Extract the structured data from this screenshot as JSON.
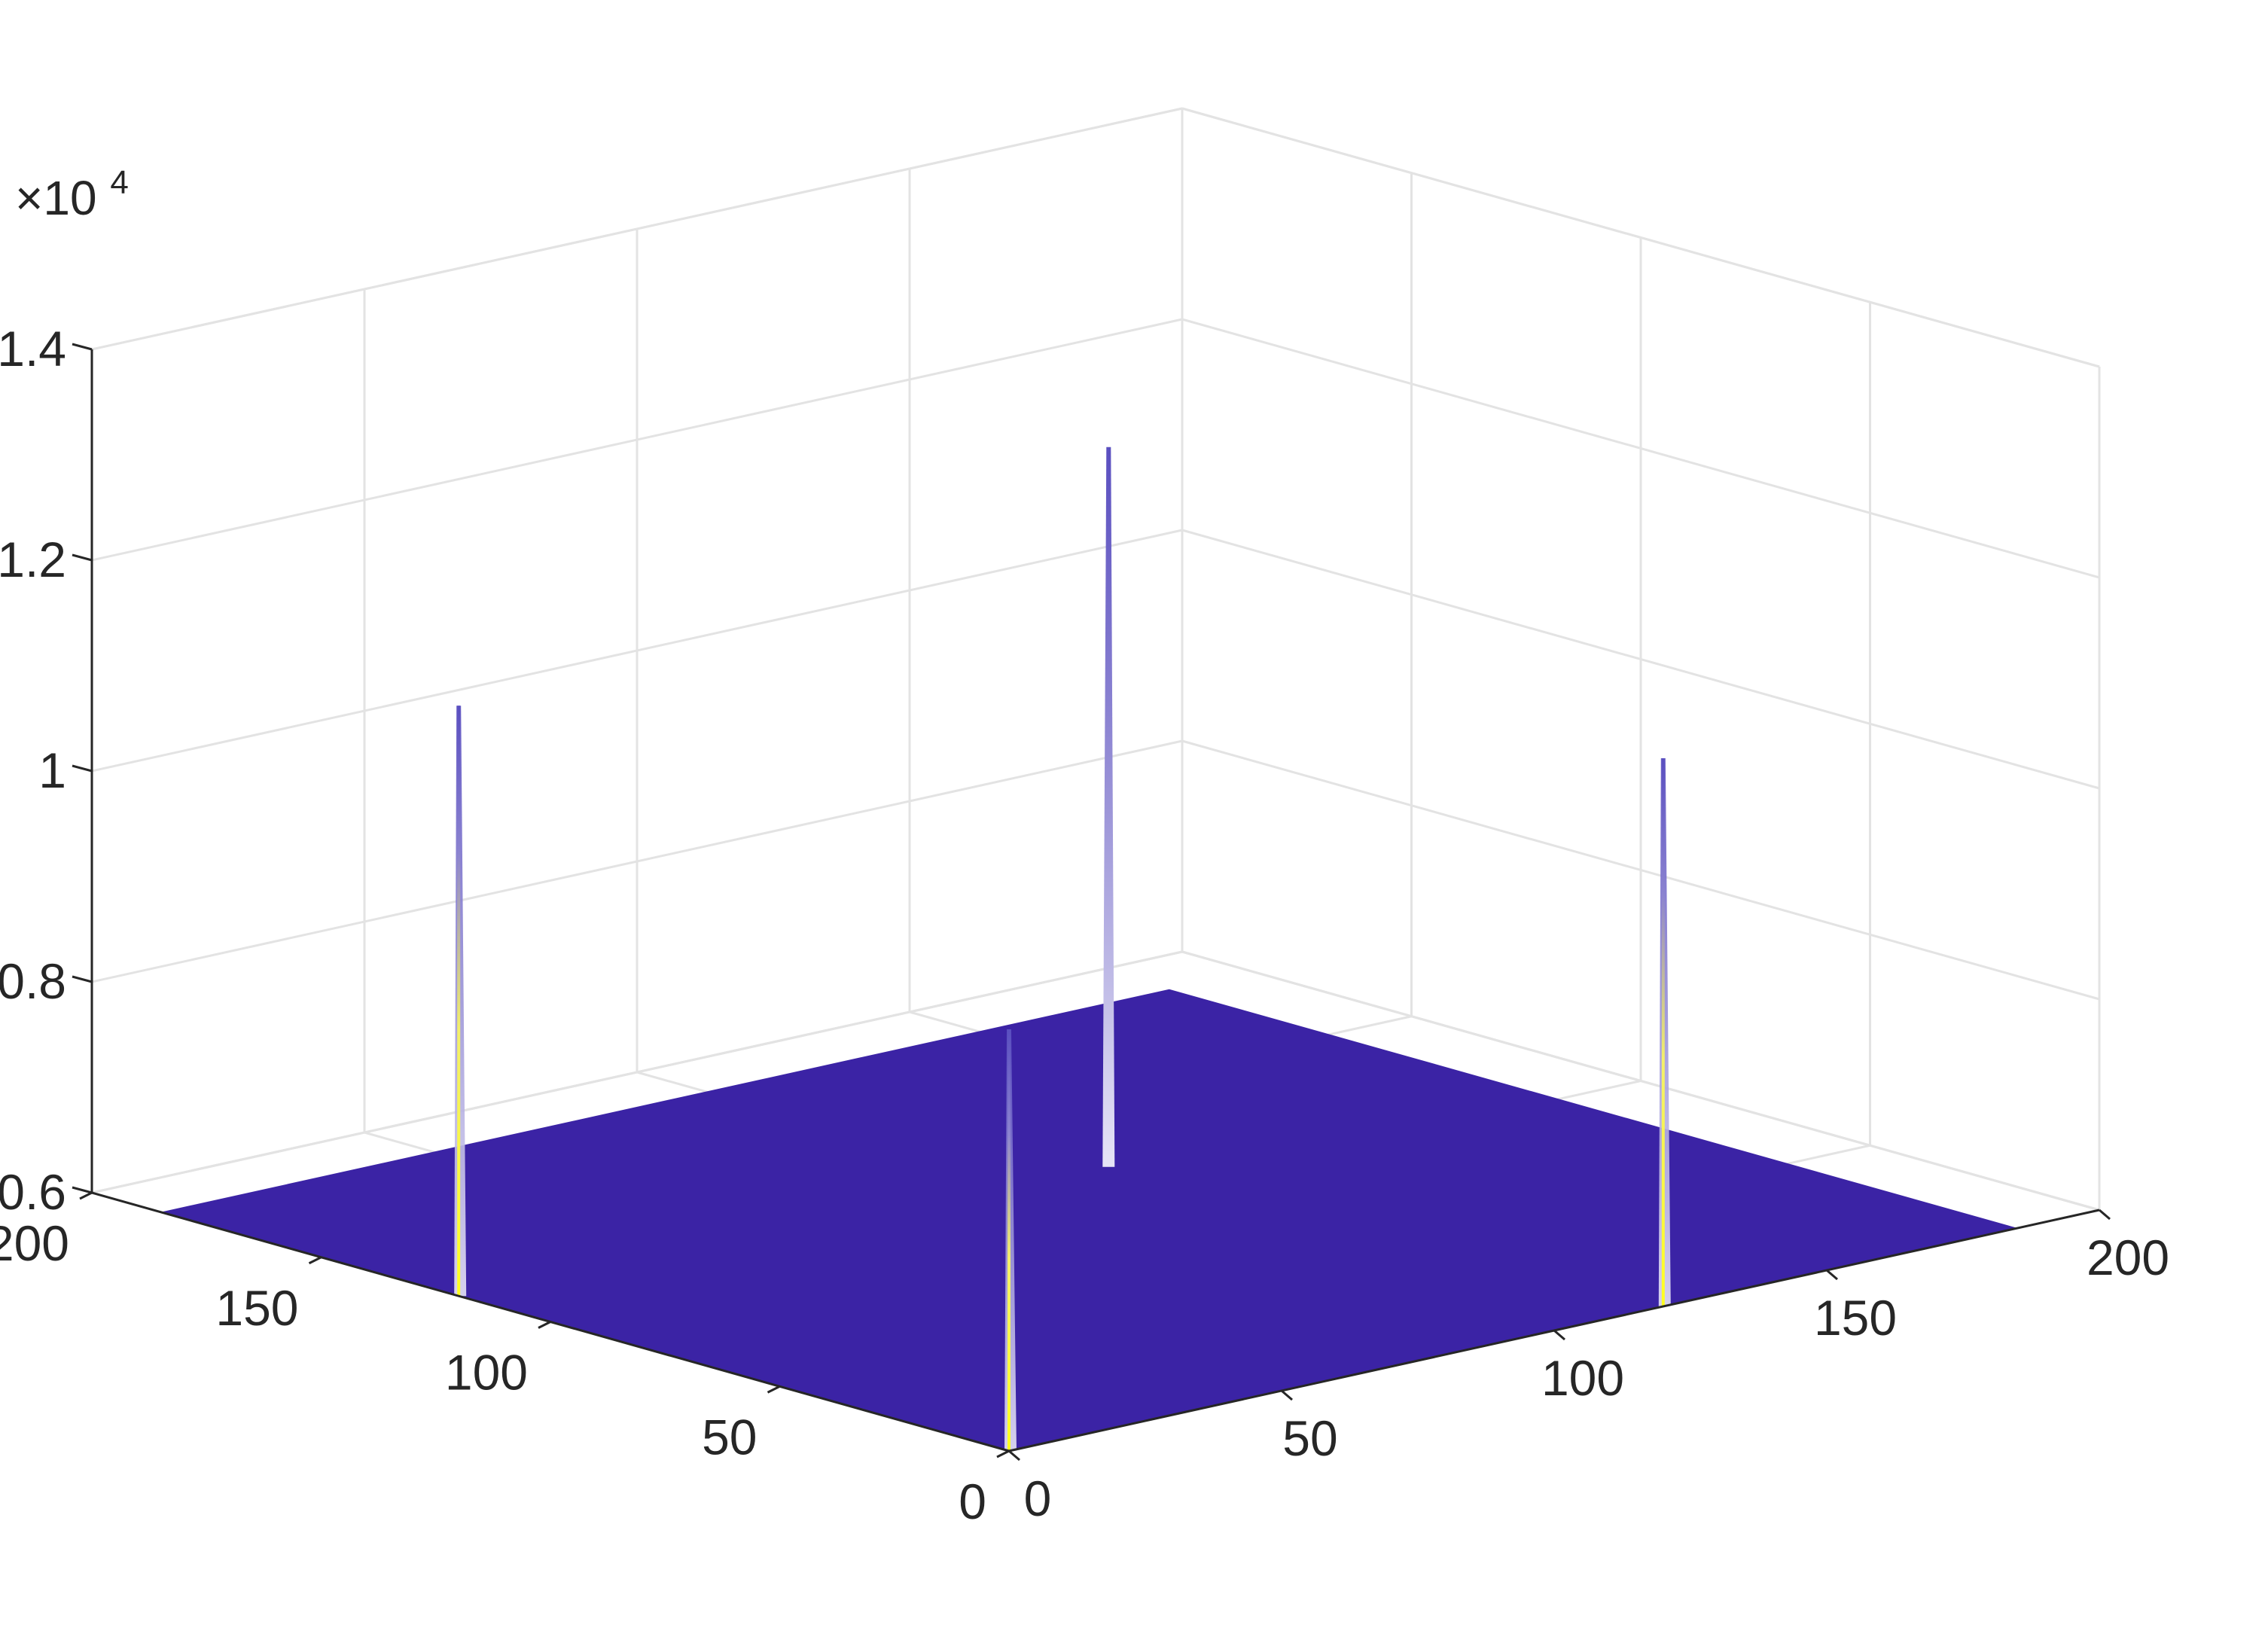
{
  "chart_data": {
    "type": "surface",
    "title": "",
    "xlabel": "",
    "ylabel": "",
    "zlabel": "",
    "x_ticks": [
      "0",
      "50",
      "100",
      "150",
      "200"
    ],
    "y_ticks": [
      "0",
      "50",
      "100",
      "150",
      "200"
    ],
    "z_ticks": [
      "0.6",
      "0.8",
      "1",
      "1.2",
      "1.4"
    ],
    "z_exponent": {
      "base": "×10",
      "power": "4"
    },
    "xlim": [
      0,
      200
    ],
    "ylim": [
      0,
      200
    ],
    "zlim": [
      6000,
      14000
    ],
    "grid": true,
    "surface": {
      "x_range": [
        0,
        185
      ],
      "y_range": [
        0,
        185
      ],
      "base_z": 6000,
      "color": "#3b23a5"
    },
    "peaks": [
      {
        "x": 0,
        "y": 0,
        "z": 10000
      },
      {
        "x": 0,
        "y": 120,
        "z": 11600
      },
      {
        "x": 120,
        "y": 0,
        "z": 11200
      },
      {
        "x": 115,
        "y": 115,
        "z": 12800
      }
    ],
    "colors": {
      "surface": "#3b23a5",
      "peak_top": "#5a4fc0",
      "peak_high": "#ffff1f",
      "grid": "#e3e3e3",
      "axis": "#262626"
    }
  }
}
